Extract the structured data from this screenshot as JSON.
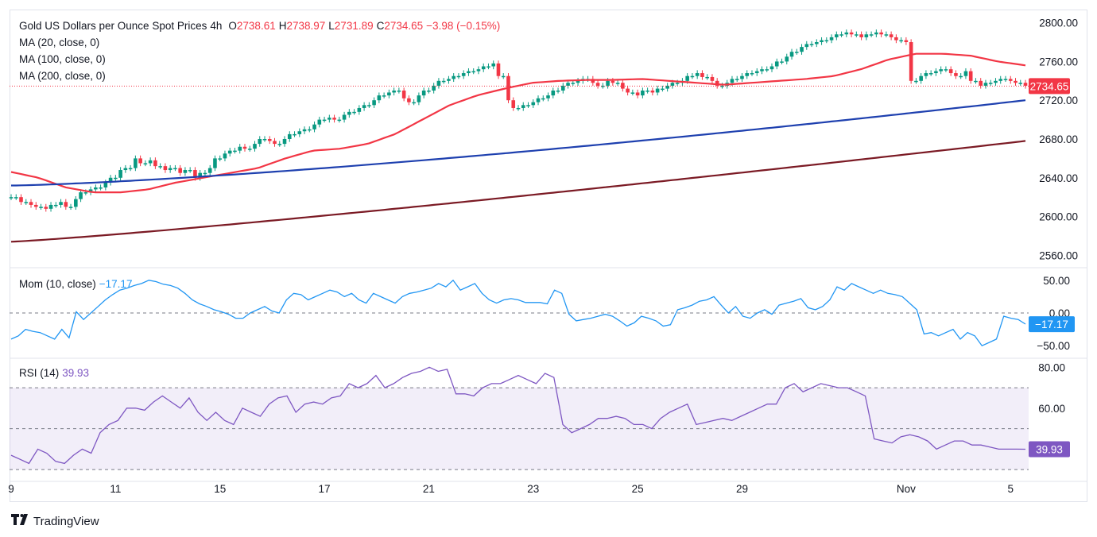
{
  "header": {
    "symbol": "Gold US Dollars per Ounce Spot Prices",
    "interval": "4h",
    "open_label": "O",
    "open": "2738.61",
    "high_label": "H",
    "high": "2738.97",
    "low_label": "L",
    "low": "2731.89",
    "close_label": "C",
    "close": "2734.65",
    "change": "−3.98 (−0.15%)"
  },
  "ma_legend": [
    {
      "label": "MA (20, close, 0)",
      "color": "#f23645"
    },
    {
      "label": "MA (100, close, 0)",
      "color": "#1e40af"
    },
    {
      "label": "MA (200, close, 0)",
      "color": "#7b1a24"
    }
  ],
  "mom_legend": {
    "label": "Mom (10, close)",
    "value": "−17.17"
  },
  "rsi_legend": {
    "label": "RSI (14)",
    "value": "39.93"
  },
  "colors": {
    "up": "#089981",
    "down": "#f23645",
    "mom": "#2196f3",
    "rsi": "#7e57c2",
    "price_line": "#f23645"
  },
  "footer": {
    "brand": "TradingView",
    "logo_icon": "tv-logo-icon"
  },
  "chart_data": [
    {
      "type": "candlestick",
      "title": "Gold US Dollars per Ounce Spot Prices, 4h",
      "ylim": [
        2548,
        2812
      ],
      "y_ticks": [
        "2800.00",
        "2760.00",
        "2720.00",
        "2680.00",
        "2640.00",
        "2600.00",
        "2560.00"
      ],
      "x_ticks": [
        {
          "label": "9",
          "i": 0
        },
        {
          "label": "11",
          "i": 21
        },
        {
          "label": "15",
          "i": 42
        },
        {
          "label": "17",
          "i": 63
        },
        {
          "label": "21",
          "i": 84
        },
        {
          "label": "23",
          "i": 105
        },
        {
          "label": "25",
          "i": 126
        },
        {
          "label": "29",
          "i": 147
        },
        {
          "label": "Nov",
          "i": 180
        },
        {
          "label": "5",
          "i": 201
        }
      ],
      "last_price": "2734.65",
      "series": [
        {
          "name": "MA (20, close, 0)",
          "values": [
            2646,
            2643,
            2640,
            2637,
            2634,
            2631,
            2628,
            2626,
            2625,
            2625,
            2625,
            2625,
            2626,
            2628,
            2630,
            2632,
            2634,
            2636,
            2638,
            2640,
            2642,
            2643,
            2645,
            2647,
            2649,
            2651,
            2654,
            2658,
            2662,
            2665,
            2667,
            2668,
            2669,
            2670,
            2671,
            2673,
            2675,
            2678,
            2682,
            2686,
            2690,
            2696,
            2702,
            2708,
            2712,
            2716,
            2720,
            2722,
            2724,
            2726,
            2728,
            2730,
            2732,
            2735,
            2738,
            2740,
            2740,
            2741,
            2741,
            2741,
            2741,
            2741,
            2741,
            2741,
            2741,
            2741,
            2741,
            2741,
            2741,
            2741,
            2741,
            2741,
            2741,
            2741,
            2741,
            2741,
            2741,
            2741,
            2741,
            2741,
            2741,
            2741,
            2741,
            2741,
            2741,
            2741,
            2741,
            2741,
            2741,
            2741,
            2741,
            2741,
            2741,
            2741,
            2741,
            2741,
            2741,
            2741,
            2741,
            2741,
            2741,
            2741,
            2741,
            2741,
            2741,
            2741,
            2741,
            2741,
            2741,
            2741,
            2741,
            2741,
            2741,
            2741,
            2741,
            2741,
            2741,
            2741,
            2741,
            2741,
            2741,
            2741,
            2741,
            2741,
            2741,
            2741,
            2741,
            2741,
            2741,
            2741,
            2741,
            2741,
            2741,
            2741,
            2741,
            2741,
            2741,
            2741,
            2741,
            2741,
            2741,
            2741,
            2741,
            2741,
            2741,
            2741,
            2741,
            2741,
            2741,
            2741,
            2741,
            2741,
            2741,
            2741,
            2741,
            2741,
            2741,
            2741,
            2741,
            2741,
            2741,
            2741,
            2741,
            2741,
            2741,
            2741,
            2741,
            2741,
            2741,
            2741,
            2741,
            2741,
            2741,
            2741,
            2741,
            2741,
            2741,
            2741,
            2741,
            2741,
            2741,
            2741,
            2741,
            2741,
            2741,
            2741,
            2741,
            2741,
            2741,
            2741,
            2741,
            2741,
            2741,
            2741,
            2741
          ]
        },
        {
          "name": "MA (100, close, 0)",
          "values": []
        },
        {
          "name": "MA (200, close, 0)",
          "values": []
        }
      ]
    },
    {
      "type": "line",
      "title": "Mom (10, close)",
      "ylim": [
        -68,
        68
      ],
      "y_ticks": [
        "50.00",
        "0.00",
        "−50.00"
      ],
      "last_value": "−17.17",
      "series": [
        {
          "name": "Mom (10, close)",
          "values": [
            -40,
            -35,
            -25,
            -28,
            -30,
            -35,
            -40,
            -25,
            -38,
            2,
            -10,
            0,
            10,
            20,
            28,
            35,
            38,
            42,
            45,
            50,
            48,
            44,
            42,
            38,
            30,
            20,
            14,
            10,
            5,
            2,
            -2,
            -8,
            -8,
            0,
            5,
            10,
            3,
            0,
            20,
            30,
            28,
            20,
            25,
            30,
            35,
            32,
            25,
            30,
            20,
            15,
            30,
            25,
            20,
            15,
            25,
            30,
            32,
            35,
            38,
            45,
            40,
            50,
            35,
            40,
            45,
            30,
            20,
            15,
            20,
            22,
            20,
            16,
            16,
            16,
            14,
            35,
            30,
            -2,
            -12,
            -10,
            -8,
            -5,
            -2,
            -5,
            -12,
            -20,
            -15,
            -5,
            -8,
            -12,
            -20,
            -18,
            5,
            8,
            12,
            18,
            20,
            25,
            12,
            0,
            10,
            -5,
            -8,
            0,
            5,
            -2,
            12,
            15,
            18,
            22,
            8,
            5,
            10,
            20,
            40,
            35,
            45,
            40,
            35,
            30,
            35,
            30,
            28,
            25,
            15,
            5,
            -32,
            -30,
            -35,
            -30,
            -25,
            -40,
            -30,
            -35,
            -50,
            -45,
            -40,
            -5,
            -8,
            -10,
            -17
          ]
        }
      ]
    },
    {
      "type": "line",
      "title": "RSI (14)",
      "ylim": [
        25,
        84
      ],
      "y_ticks": [
        "80.00",
        "60.00"
      ],
      "bands": [
        30,
        50,
        70
      ],
      "last_value": "39.93",
      "series": [
        {
          "name": "RSI (14)",
          "values": [
            37,
            35,
            33,
            40,
            38,
            34,
            33,
            37,
            40,
            38,
            48,
            52,
            54,
            60,
            60,
            59,
            63,
            66,
            63,
            60,
            65,
            58,
            54,
            58,
            54,
            52,
            60,
            58,
            56,
            62,
            65,
            66,
            58,
            62,
            63,
            62,
            65,
            66,
            72,
            70,
            72,
            76,
            70,
            72,
            75,
            77,
            78,
            80,
            78,
            79,
            67,
            67,
            66,
            70,
            72,
            72,
            74,
            76,
            74,
            72,
            77,
            75,
            52,
            48,
            50,
            52,
            55,
            55,
            56,
            55,
            52,
            52,
            50,
            55,
            58,
            60,
            62,
            52,
            53,
            54,
            55,
            54,
            56,
            58,
            60,
            62,
            62,
            70,
            72,
            68,
            70,
            72,
            71,
            70,
            70,
            68,
            66,
            45,
            44,
            43,
            46,
            47,
            46,
            44,
            40,
            42,
            44,
            44,
            42,
            42,
            41,
            40,
            40,
            40,
            39.93
          ]
        }
      ]
    }
  ]
}
